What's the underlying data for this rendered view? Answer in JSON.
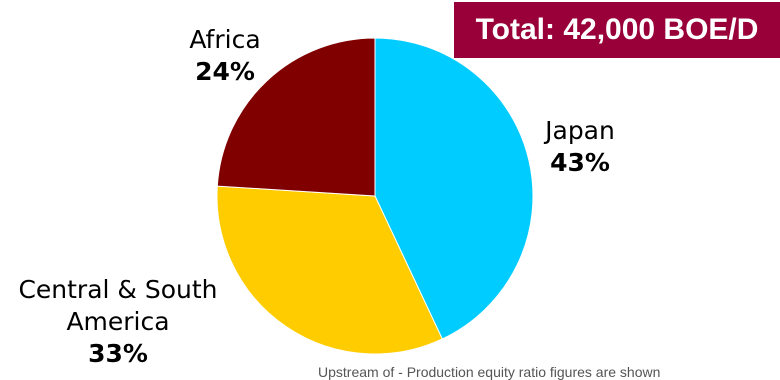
{
  "chart_data": {
    "type": "pie",
    "slices": [
      {
        "label_lines": [
          "Japan"
        ],
        "value": 43,
        "value_label": "43%",
        "color": "#00CCFF"
      },
      {
        "label_lines": [
          "Central & South",
          "America"
        ],
        "value": 33,
        "value_label": "33%",
        "color": "#FFCC00"
      },
      {
        "label_lines": [
          "Africa"
        ],
        "value": 24,
        "value_label": "24%",
        "color": "#800000"
      }
    ],
    "start_angle": "12 o'clock",
    "direction": "clockwise",
    "legend": "none",
    "title": ""
  },
  "total_badge": {
    "text": "Total: 42,000 BOE/D",
    "background": "#99003A",
    "color": "#FFFFFF"
  },
  "footnote": "Upstream of - Production equity ratio figures are shown"
}
